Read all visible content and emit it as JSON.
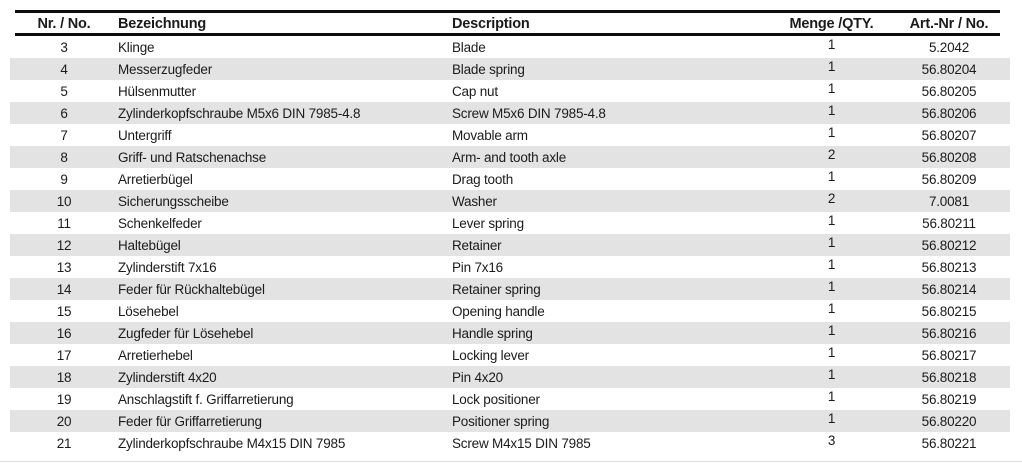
{
  "table": {
    "headers": {
      "no": "Nr. / No.",
      "bezeichnung": "Bezeichnung",
      "description": "Description",
      "qty": "Menge /QTY.",
      "art": "Art.-Nr / No."
    },
    "rows": [
      {
        "no": "3",
        "bezeichnung": "Klinge",
        "description": "Blade",
        "qty": "1",
        "art": "5.2042"
      },
      {
        "no": "4",
        "bezeichnung": "Messerzugfeder",
        "description": "Blade spring",
        "qty": "1",
        "art": "56.80204"
      },
      {
        "no": "5",
        "bezeichnung": "Hülsenmutter",
        "description": "Cap nut",
        "qty": "1",
        "art": "56.80205"
      },
      {
        "no": "6",
        "bezeichnung": "Zylinderkopfschraube M5x6 DIN 7985-4.8",
        "description": "Screw M5x6 DIN 7985-4.8",
        "qty": "1",
        "art": "56.80206"
      },
      {
        "no": "7",
        "bezeichnung": "Untergriff",
        "description": "Movable arm",
        "qty": "1",
        "art": "56.80207"
      },
      {
        "no": "8",
        "bezeichnung": "Griff- und Ratschenachse",
        "description": "Arm- and tooth axle",
        "qty": "2",
        "art": "56.80208"
      },
      {
        "no": "9",
        "bezeichnung": "Arretierbügel",
        "description": "Drag tooth",
        "qty": "1",
        "art": "56.80209"
      },
      {
        "no": "10",
        "bezeichnung": "Sicherungsscheibe",
        "description": "Washer",
        "qty": "2",
        "art": "7.0081"
      },
      {
        "no": "11",
        "bezeichnung": "Schenkelfeder",
        "description": "Lever spring",
        "qty": "1",
        "art": "56.80211"
      },
      {
        "no": "12",
        "bezeichnung": "Haltebügel",
        "description": "Retainer",
        "qty": "1",
        "art": "56.80212"
      },
      {
        "no": "13",
        "bezeichnung": "Zylinderstift 7x16",
        "description": "Pin 7x16",
        "qty": "1",
        "art": "56.80213"
      },
      {
        "no": "14",
        "bezeichnung": "Feder für Rückhaltebügel",
        "description": "Retainer spring",
        "qty": "1",
        "art": "56.80214"
      },
      {
        "no": "15",
        "bezeichnung": "Lösehebel",
        "description": "Opening handle",
        "qty": "1",
        "art": "56.80215"
      },
      {
        "no": "16",
        "bezeichnung": "Zugfeder für Lösehebel",
        "description": "Handle spring",
        "qty": "1",
        "art": "56.80216"
      },
      {
        "no": "17",
        "bezeichnung": "Arretierhebel",
        "description": "Locking lever",
        "qty": "1",
        "art": "56.80217"
      },
      {
        "no": "18",
        "bezeichnung": "Zylinderstift 4x20",
        "description": "Pin 4x20",
        "qty": "1",
        "art": "56.80218"
      },
      {
        "no": "19",
        "bezeichnung": "Anschlagstift f. Griffarretierung",
        "description": "Lock positioner",
        "qty": "1",
        "art": "56.80219"
      },
      {
        "no": "20",
        "bezeichnung": "Feder für Griffarretierung",
        "description": "Positioner spring",
        "qty": "1",
        "art": "56.80220"
      },
      {
        "no": "21",
        "bezeichnung": "Zylinderkopfschraube M4x15 DIN 7985",
        "description": "Screw M4x15 DIN 7985",
        "qty": "3",
        "art": "56.80221"
      }
    ],
    "colors": {
      "stripe": "#e3e3e3",
      "rule": "#0d0d0d",
      "text": "#1b1b1b"
    }
  }
}
